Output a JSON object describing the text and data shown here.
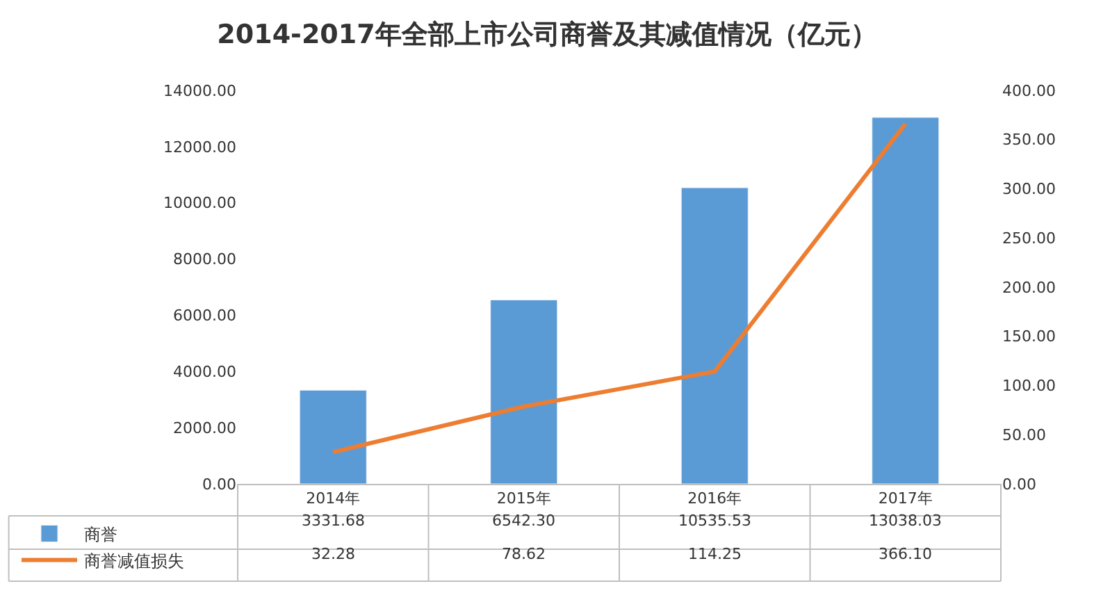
{
  "chart_data": {
    "type": "bar",
    "title": "2014-2017年全部上市公司商誉及其减值情况（亿元）",
    "categories": [
      "2014年",
      "2015年",
      "2016年",
      "2017年"
    ],
    "series": [
      {
        "name": "商誉",
        "color": "#5b9bd5",
        "values": [
          3331.68,
          6542.3,
          10535.53,
          13038.03
        ]
      },
      {
        "name": "商誉减值损失",
        "type": "line",
        "axis": "y2",
        "color": "#ed7d31",
        "values": [
          32.28,
          78.62,
          114.25,
          366.1
        ]
      }
    ],
    "value_labels": [
      [
        "3331.68",
        "6542.30",
        "10535.53",
        "13038.03"
      ],
      [
        "32.28",
        "78.62",
        "114.25",
        "366.10"
      ]
    ],
    "ylim": [
      0,
      14000
    ],
    "yticks": [
      {
        "value": 0,
        "label": "0.00"
      },
      {
        "value": 2000,
        "label": "2000.00"
      },
      {
        "value": 4000,
        "label": "4000.00"
      },
      {
        "value": 6000,
        "label": "6000.00"
      },
      {
        "value": 8000,
        "label": "8000.00"
      },
      {
        "value": 10000,
        "label": "10000.00"
      },
      {
        "value": 12000,
        "label": "12000.00"
      },
      {
        "value": 14000,
        "label": "14000.00"
      }
    ],
    "y2lim": [
      0,
      400
    ],
    "y2ticks": [
      {
        "value": 0,
        "label": "0.00"
      },
      {
        "value": 50,
        "label": "50.00"
      },
      {
        "value": 100,
        "label": "100.00"
      },
      {
        "value": 150,
        "label": "150.00"
      },
      {
        "value": 200,
        "label": "200.00"
      },
      {
        "value": 250,
        "label": "250.00"
      },
      {
        "value": 300,
        "label": "300.00"
      },
      {
        "value": 350,
        "label": "350.00"
      },
      {
        "value": 400,
        "label": "400.00"
      }
    ],
    "legend": "bottom left",
    "marker": "none",
    "line_style": "solid"
  }
}
